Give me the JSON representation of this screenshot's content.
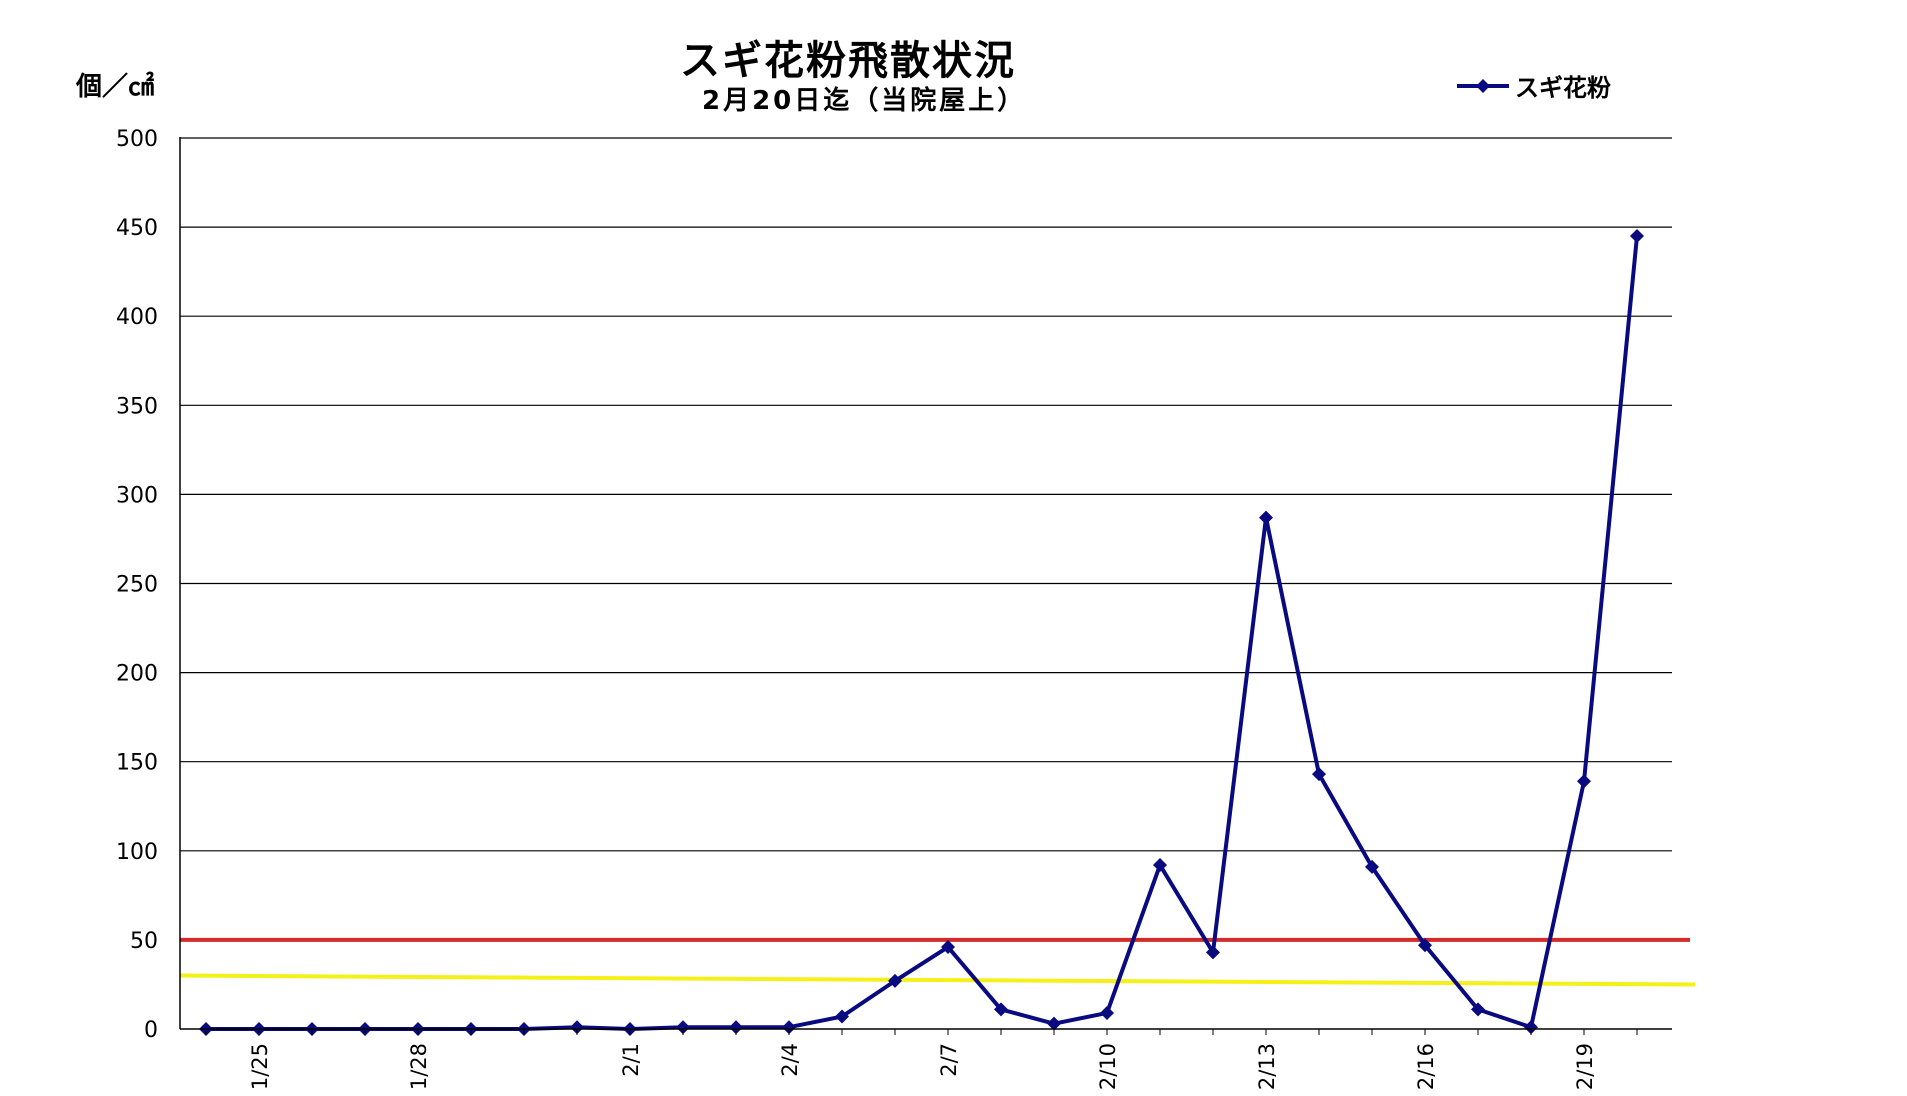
{
  "colors": {
    "series": "#0a0a80",
    "red_line": "#d42a2a",
    "yellow_line": "#f5f018",
    "grid": "#000000"
  },
  "chart_data": {
    "type": "line",
    "title": "スギ花粉飛散状況",
    "subtitle": "2月20日迄（当院屋上）",
    "ylabel": "個／㎠",
    "ylim": [
      0,
      500
    ],
    "yticks": [
      0,
      50,
      100,
      150,
      200,
      250,
      300,
      350,
      400,
      450,
      500
    ],
    "x": [
      "1/24",
      "1/25",
      "1/26",
      "1/27",
      "1/28",
      "1/29",
      "1/30",
      "1/31",
      "2/1",
      "2/2",
      "2/3",
      "2/4",
      "2/5",
      "2/6",
      "2/7",
      "2/8",
      "2/9",
      "2/10",
      "2/11",
      "2/12",
      "2/13",
      "2/14",
      "2/15",
      "2/16",
      "2/17",
      "2/18",
      "2/19",
      "2/20"
    ],
    "x_tick_labels": [
      "1/25",
      "1/28",
      "2/1",
      "2/4",
      "2/7",
      "2/10",
      "2/13",
      "2/16",
      "2/19"
    ],
    "grid": "horizontal",
    "legend_position": "top-right",
    "series": [
      {
        "name": "スギ花粉",
        "marker": "diamond",
        "values": [
          0,
          0,
          0,
          0,
          0,
          0,
          0,
          1,
          0,
          1,
          1,
          1,
          7,
          27,
          46,
          11,
          3,
          9,
          92,
          43,
          287,
          143,
          91,
          47,
          11,
          1,
          139,
          445
        ]
      }
    ],
    "reference_lines": [
      {
        "color": "red",
        "value": 50
      },
      {
        "color": "yellow",
        "value_start": 30,
        "value_end": 25
      }
    ]
  }
}
